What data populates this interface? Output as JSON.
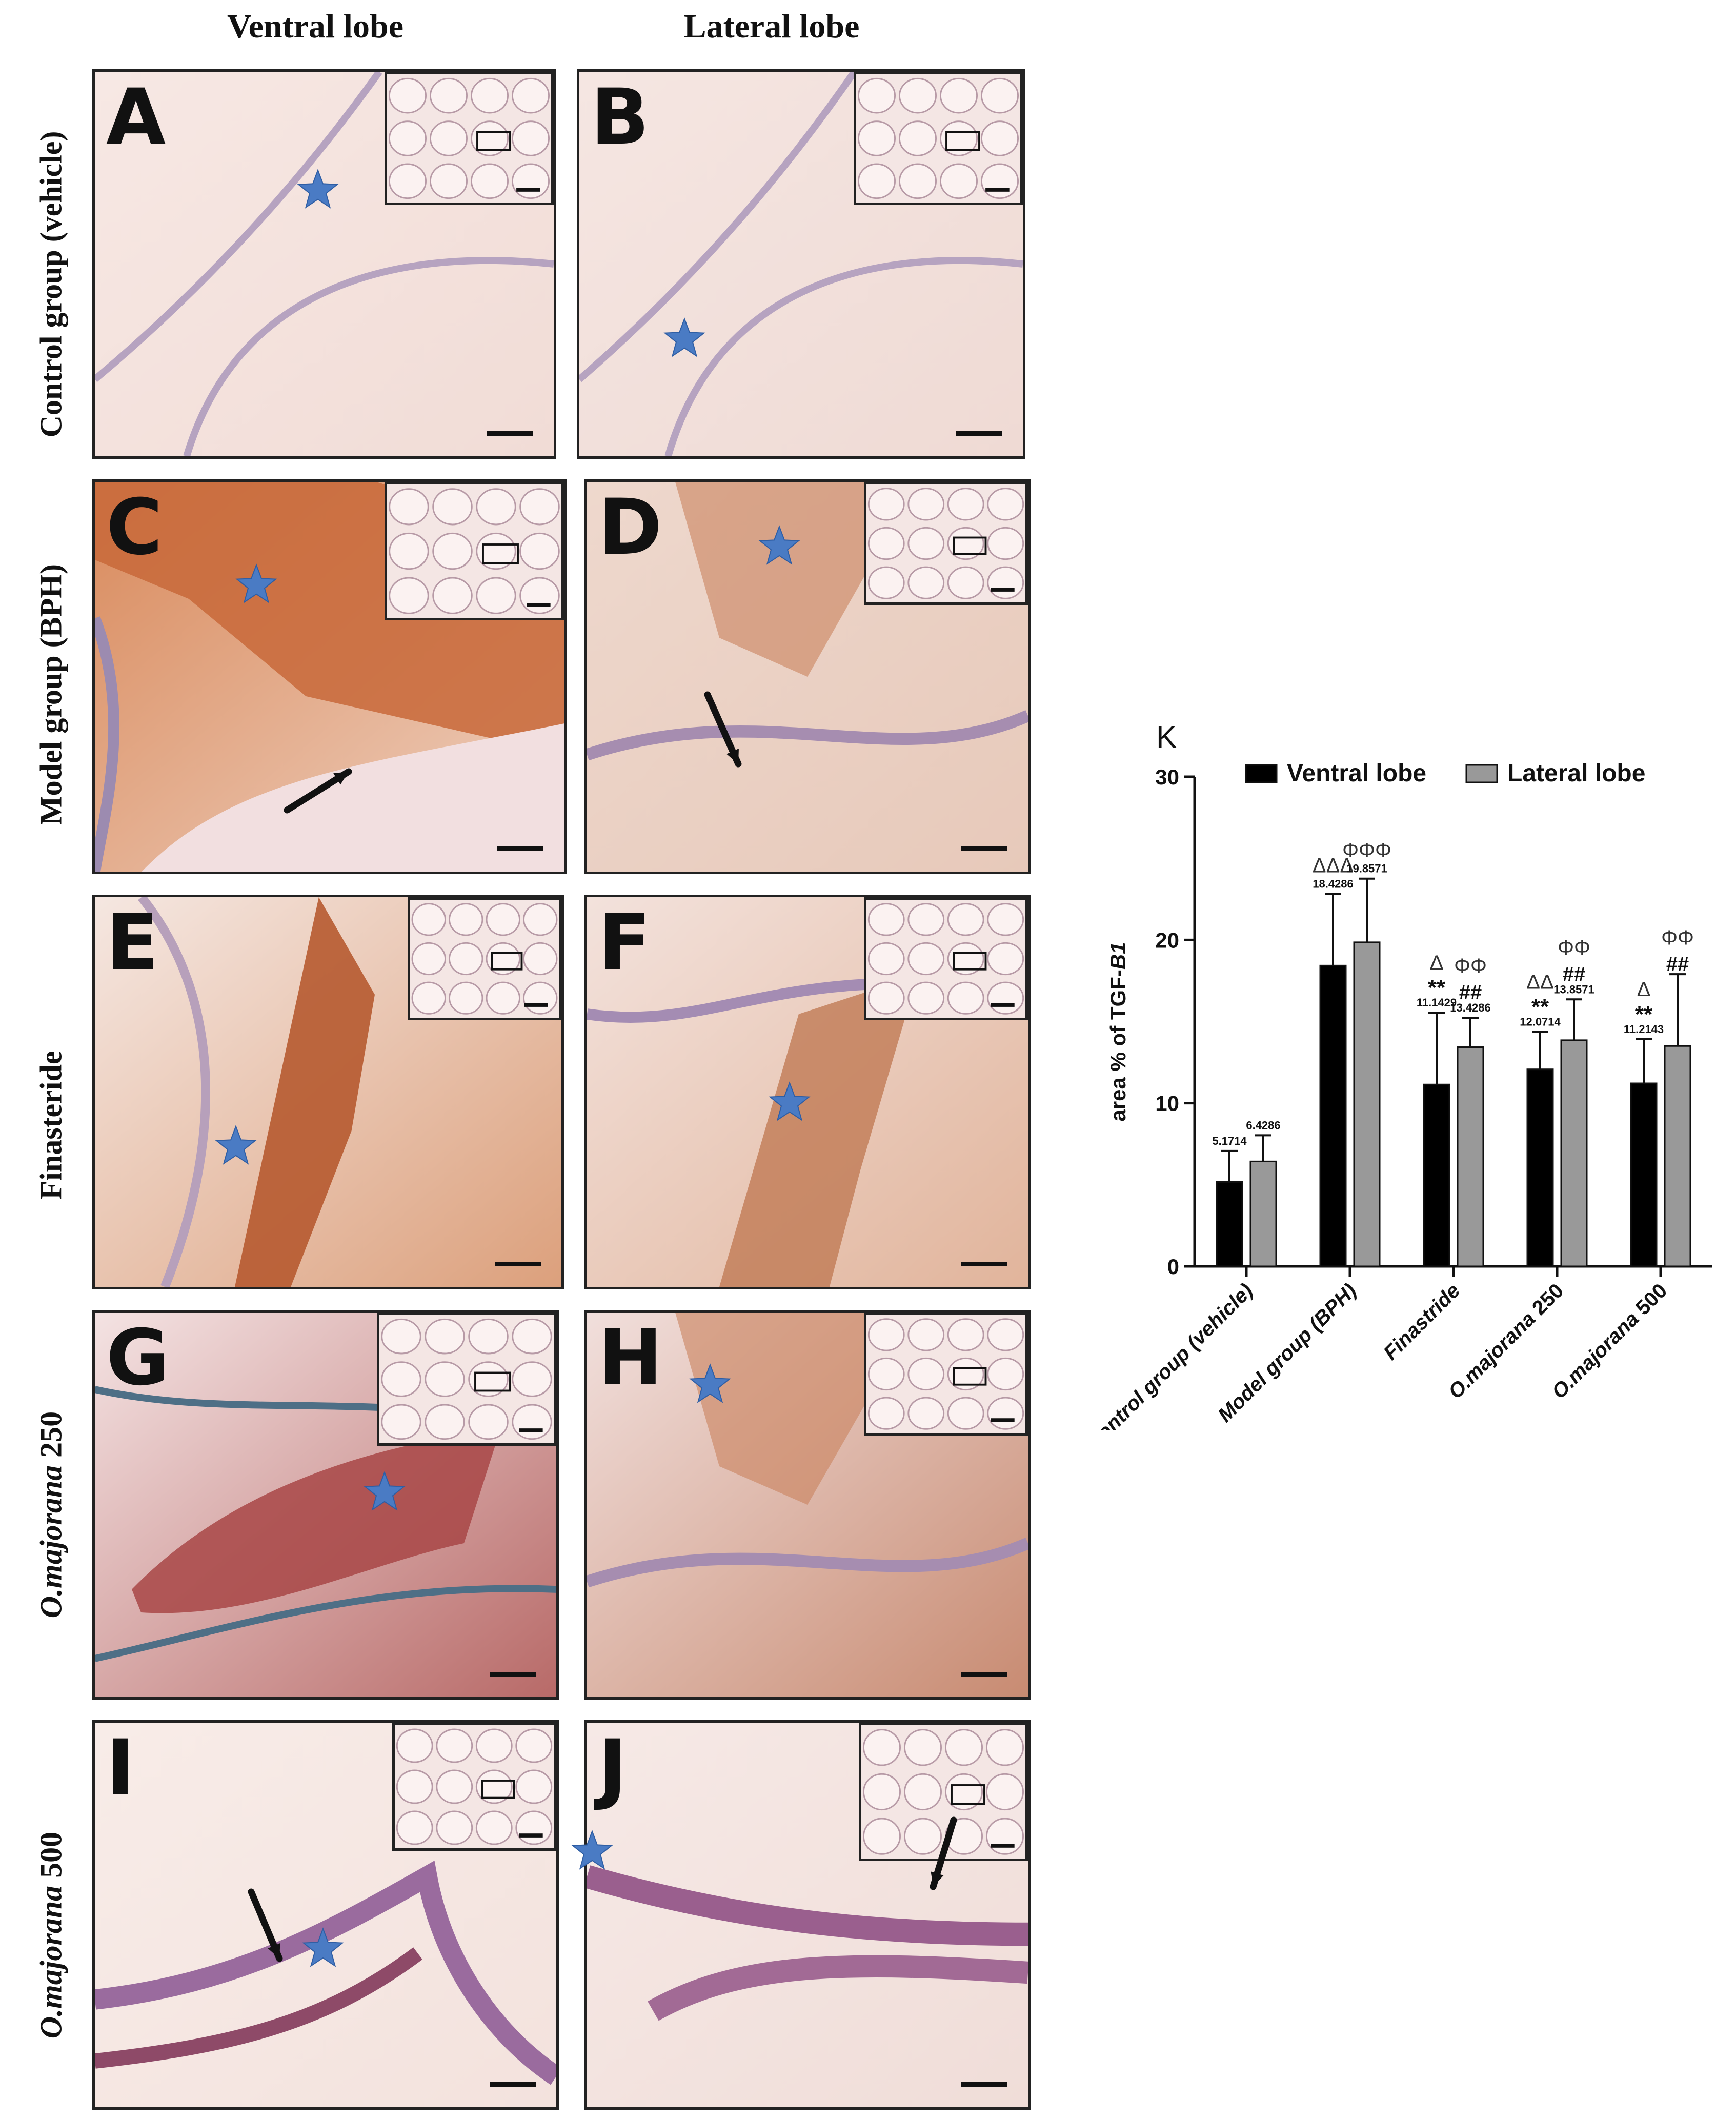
{
  "columns": [
    "Ventral lobe",
    "Lateral lobe"
  ],
  "rows": [
    {
      "label": "Control group (vehicle)",
      "italic_part": "",
      "plain_part": ""
    },
    {
      "label": "Model group (BPH)",
      "italic_part": "",
      "plain_part": ""
    },
    {
      "label": "Finasteride",
      "italic_part": "",
      "plain_part": ""
    },
    {
      "label": "",
      "italic_part": "O.majorana",
      "plain_part": " 250"
    },
    {
      "label": "",
      "italic_part": "O.majorana",
      "plain_part": " 500"
    }
  ],
  "panels": [
    "A",
    "B",
    "C",
    "D",
    "E",
    "F",
    "G",
    "H",
    "I",
    "J"
  ],
  "chart_data": {
    "type": "bar",
    "panel_label": "K",
    "categories": [
      "Control group (vehicle)",
      "Model group (BPH)",
      "Finastride",
      "O.majorana 250",
      "O.majorana 500"
    ],
    "category_parts": [
      {
        "italic": "",
        "plain": "Control group (vehicle)"
      },
      {
        "italic": "",
        "plain": "Model group (BPH)"
      },
      {
        "italic": "",
        "plain": "Finastride"
      },
      {
        "italic": "O.majorana",
        "plain": " 250"
      },
      {
        "italic": "O.majorana",
        "plain": " 500"
      }
    ],
    "series": [
      {
        "name": "Ventral lobe",
        "color": "#000000",
        "values": [
          5.1714,
          18.4286,
          11.1429,
          12.0714,
          11.2143
        ],
        "errors": [
          1.9,
          4.4,
          4.4,
          2.3,
          2.7
        ],
        "value_labels": [
          "5.1714",
          "18.4286",
          "11.1429",
          "12.0714",
          "11.2143"
        ],
        "stars": [
          "",
          "",
          "**",
          "**",
          "**"
        ],
        "deltas": [
          "",
          "ΔΔΔ",
          "Δ",
          "ΔΔ",
          "Δ"
        ]
      },
      {
        "name": "Lateral lobe",
        "color": "#999999",
        "values": [
          6.4286,
          19.8571,
          13.4286,
          13.8571,
          13.5
        ],
        "errors": [
          1.6,
          3.9,
          1.8,
          2.5,
          4.4
        ],
        "value_labels": [
          "6.4286",
          "19.8571",
          "13.4286",
          "13.8571",
          ""
        ],
        "hashes": [
          "",
          "",
          "##",
          "##",
          "##"
        ],
        "phis": [
          "",
          "ΦΦΦ",
          "ΦΦ",
          "ΦΦ",
          "ΦΦ"
        ]
      }
    ],
    "ylabel_prefix": "area % of TGF-",
    "ylabel_italic": "B1",
    "ylim": [
      0,
      30
    ],
    "yticks": [
      0,
      10,
      20,
      30
    ],
    "legend_position": "top"
  }
}
